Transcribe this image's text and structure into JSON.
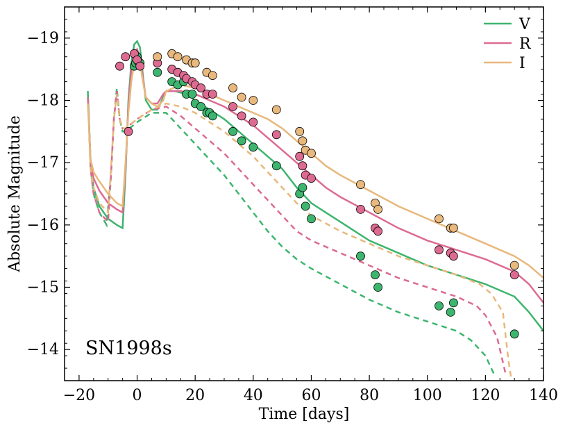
{
  "chart_data": {
    "type": "line",
    "title": "",
    "annotation": "SN1998s",
    "xlabel": "Time [days]",
    "ylabel": "Absolute Magnitude",
    "xlim": [
      -25,
      140
    ],
    "ylim": [
      -13.5,
      -19.5
    ],
    "xticks": [
      -20,
      0,
      20,
      40,
      60,
      80,
      100,
      120,
      140
    ],
    "xtick_labels": [
      "−20",
      "0",
      "20",
      "40",
      "60",
      "80",
      "100",
      "120",
      "140"
    ],
    "yticks": [
      -14,
      -15,
      -16,
      -17,
      -18,
      -19
    ],
    "ytick_labels": [
      "−14",
      "−15",
      "−16",
      "−17",
      "−18",
      "−19"
    ],
    "legend_position": "top-right",
    "series": [
      {
        "name": "V",
        "color": "#3db56e",
        "solid": [
          [
            -17,
            -18.15
          ],
          [
            -16,
            -17.0
          ],
          [
            -15,
            -16.6
          ],
          [
            -13,
            -16.3
          ],
          [
            -10,
            -16.1
          ],
          [
            -7,
            -16.0
          ],
          [
            -5,
            -15.95
          ],
          [
            -4,
            -16.8
          ],
          [
            -3,
            -18.0
          ],
          [
            -2,
            -18.6
          ],
          [
            -1,
            -18.9
          ],
          [
            0,
            -18.95
          ],
          [
            1,
            -18.85
          ],
          [
            2,
            -18.4
          ],
          [
            3,
            -18.0
          ],
          [
            5,
            -17.85
          ],
          [
            7,
            -17.85
          ],
          [
            9,
            -18.05
          ],
          [
            10,
            -18.15
          ],
          [
            13,
            -18.15
          ],
          [
            17,
            -18.1
          ],
          [
            20,
            -18.0
          ],
          [
            25,
            -17.85
          ],
          [
            30,
            -17.7
          ],
          [
            35,
            -17.5
          ],
          [
            40,
            -17.3
          ],
          [
            45,
            -17.1
          ],
          [
            50,
            -16.9
          ],
          [
            55,
            -16.6
          ],
          [
            60,
            -16.35
          ],
          [
            65,
            -16.2
          ],
          [
            70,
            -16.05
          ],
          [
            80,
            -15.75
          ],
          [
            90,
            -15.55
          ],
          [
            100,
            -15.35
          ],
          [
            110,
            -15.2
          ],
          [
            120,
            -15.05
          ],
          [
            125,
            -14.95
          ],
          [
            130,
            -14.85
          ],
          [
            135,
            -14.6
          ],
          [
            140,
            -14.3
          ]
        ],
        "dashed": [
          [
            -16.5,
            -17.6
          ],
          [
            -16,
            -16.9
          ],
          [
            -15,
            -16.5
          ],
          [
            -13,
            -16.2
          ],
          [
            -10.5,
            -16.0
          ],
          [
            -9,
            -16.8
          ],
          [
            -8,
            -17.7
          ],
          [
            -7,
            -18.2
          ],
          [
            -6,
            -17.7
          ],
          [
            -5,
            -17.5
          ],
          [
            -4,
            -17.5
          ],
          [
            0,
            -17.65
          ],
          [
            5,
            -17.8
          ],
          [
            10,
            -17.8
          ],
          [
            15,
            -17.55
          ],
          [
            20,
            -17.3
          ],
          [
            25,
            -17.05
          ],
          [
            30,
            -16.8
          ],
          [
            35,
            -16.5
          ],
          [
            40,
            -16.2
          ],
          [
            45,
            -15.9
          ],
          [
            50,
            -15.65
          ],
          [
            55,
            -15.45
          ],
          [
            60,
            -15.3
          ],
          [
            70,
            -15.05
          ],
          [
            80,
            -14.8
          ],
          [
            90,
            -14.6
          ],
          [
            100,
            -14.45
          ],
          [
            110,
            -14.3
          ],
          [
            115,
            -14.15
          ],
          [
            120,
            -13.9
          ],
          [
            123,
            -13.6
          ]
        ],
        "points": [
          [
            -1,
            -18.55
          ],
          [
            -0.5,
            -18.6
          ],
          [
            0,
            -18.7
          ],
          [
            0.5,
            -18.62
          ],
          [
            1,
            -18.6
          ],
          [
            7,
            -18.45
          ],
          [
            12,
            -18.3
          ],
          [
            14,
            -18.25
          ],
          [
            16,
            -18.3
          ],
          [
            17,
            -18.1
          ],
          [
            19,
            -18.1
          ],
          [
            20,
            -17.95
          ],
          [
            22,
            -17.9
          ],
          [
            24,
            -17.8
          ],
          [
            25,
            -17.8
          ],
          [
            26,
            -17.75
          ],
          [
            33,
            -17.5
          ],
          [
            36,
            -17.35
          ],
          [
            40,
            -17.25
          ],
          [
            48,
            -16.95
          ],
          [
            56,
            -16.5
          ],
          [
            57,
            -16.6
          ],
          [
            58,
            -16.3
          ],
          [
            60,
            -16.1
          ],
          [
            77,
            -15.5
          ],
          [
            82,
            -15.2
          ],
          [
            83,
            -15.0
          ],
          [
            104,
            -14.7
          ],
          [
            108,
            -14.6
          ],
          [
            109,
            -14.75
          ],
          [
            130,
            -14.25
          ]
        ]
      },
      {
        "name": "R",
        "color": "#dd6b91",
        "solid": [
          [
            -17,
            -18.05
          ],
          [
            -16,
            -17.0
          ],
          [
            -15,
            -16.75
          ],
          [
            -13,
            -16.55
          ],
          [
            -10,
            -16.35
          ],
          [
            -7,
            -16.25
          ],
          [
            -5,
            -16.2
          ],
          [
            -4,
            -16.9
          ],
          [
            -3,
            -17.9
          ],
          [
            -2,
            -18.5
          ],
          [
            -1,
            -18.75
          ],
          [
            0,
            -18.82
          ],
          [
            1,
            -18.7
          ],
          [
            2,
            -18.35
          ],
          [
            3,
            -18.05
          ],
          [
            5,
            -17.95
          ],
          [
            7,
            -17.95
          ],
          [
            9,
            -18.1
          ],
          [
            10,
            -18.15
          ],
          [
            15,
            -18.15
          ],
          [
            20,
            -18.1
          ],
          [
            25,
            -18.0
          ],
          [
            30,
            -17.9
          ],
          [
            35,
            -17.75
          ],
          [
            40,
            -17.6
          ],
          [
            45,
            -17.4
          ],
          [
            50,
            -17.2
          ],
          [
            55,
            -17.0
          ],
          [
            60,
            -16.8
          ],
          [
            65,
            -16.6
          ],
          [
            70,
            -16.45
          ],
          [
            80,
            -16.2
          ],
          [
            90,
            -15.95
          ],
          [
            100,
            -15.75
          ],
          [
            110,
            -15.6
          ],
          [
            120,
            -15.45
          ],
          [
            125,
            -15.35
          ],
          [
            130,
            -15.25
          ],
          [
            135,
            -15.05
          ],
          [
            140,
            -14.75
          ]
        ],
        "dashed": [
          [
            -16.5,
            -17.5
          ],
          [
            -16,
            -16.9
          ],
          [
            -15,
            -16.5
          ],
          [
            -13,
            -16.2
          ],
          [
            -10,
            -16.05
          ],
          [
            -9,
            -16.8
          ],
          [
            -8,
            -17.7
          ],
          [
            -7,
            -18.15
          ],
          [
            -6,
            -17.7
          ],
          [
            -5,
            -17.55
          ],
          [
            -4,
            -17.55
          ],
          [
            0,
            -17.7
          ],
          [
            5,
            -17.85
          ],
          [
            10,
            -17.9
          ],
          [
            15,
            -17.75
          ],
          [
            20,
            -17.55
          ],
          [
            25,
            -17.35
          ],
          [
            30,
            -17.15
          ],
          [
            35,
            -16.9
          ],
          [
            40,
            -16.65
          ],
          [
            45,
            -16.4
          ],
          [
            50,
            -16.15
          ],
          [
            55,
            -15.9
          ],
          [
            60,
            -15.75
          ],
          [
            70,
            -15.55
          ],
          [
            80,
            -15.35
          ],
          [
            90,
            -15.15
          ],
          [
            100,
            -15.0
          ],
          [
            110,
            -14.85
          ],
          [
            117,
            -14.7
          ],
          [
            120,
            -14.55
          ],
          [
            124,
            -14.2
          ],
          [
            127,
            -13.6
          ]
        ],
        "points": [
          [
            -6,
            -18.55
          ],
          [
            -4,
            -18.7
          ],
          [
            -3,
            -17.5
          ],
          [
            -1,
            -18.75
          ],
          [
            0,
            -18.65
          ],
          [
            1,
            -18.55
          ],
          [
            7,
            -18.6
          ],
          [
            12,
            -18.5
          ],
          [
            14,
            -18.45
          ],
          [
            16,
            -18.4
          ],
          [
            17,
            -18.35
          ],
          [
            19,
            -18.3
          ],
          [
            20,
            -18.25
          ],
          [
            22,
            -18.2
          ],
          [
            24,
            -18.1
          ],
          [
            26,
            -18.1
          ],
          [
            33,
            -17.9
          ],
          [
            36,
            -17.75
          ],
          [
            40,
            -17.65
          ],
          [
            48,
            -17.45
          ],
          [
            56,
            -17.1
          ],
          [
            57,
            -16.95
          ],
          [
            58,
            -16.8
          ],
          [
            60,
            -16.75
          ],
          [
            77,
            -16.25
          ],
          [
            82,
            -15.95
          ],
          [
            83,
            -15.9
          ],
          [
            104,
            -15.6
          ],
          [
            108,
            -15.55
          ],
          [
            109,
            -15.5
          ],
          [
            130,
            -15.2
          ]
        ]
      },
      {
        "name": "I",
        "color": "#e8b87c",
        "solid": [
          [
            -17,
            -17.95
          ],
          [
            -16,
            -17.05
          ],
          [
            -15,
            -16.85
          ],
          [
            -13,
            -16.7
          ],
          [
            -10,
            -16.5
          ],
          [
            -7,
            -16.35
          ],
          [
            -5,
            -16.3
          ],
          [
            -4,
            -17.0
          ],
          [
            -3,
            -17.8
          ],
          [
            -2,
            -18.3
          ],
          [
            -1,
            -18.6
          ],
          [
            0,
            -18.7
          ],
          [
            1,
            -18.6
          ],
          [
            2,
            -18.3
          ],
          [
            3,
            -18.05
          ],
          [
            5,
            -17.95
          ],
          [
            7,
            -17.9
          ],
          [
            9,
            -18.0
          ],
          [
            10,
            -18.15
          ],
          [
            15,
            -18.25
          ],
          [
            20,
            -18.2
          ],
          [
            25,
            -18.1
          ],
          [
            30,
            -18.0
          ],
          [
            35,
            -17.9
          ],
          [
            40,
            -17.8
          ],
          [
            45,
            -17.7
          ],
          [
            50,
            -17.55
          ],
          [
            55,
            -17.35
          ],
          [
            60,
            -17.15
          ],
          [
            65,
            -16.95
          ],
          [
            70,
            -16.8
          ],
          [
            80,
            -16.55
          ],
          [
            90,
            -16.3
          ],
          [
            100,
            -16.1
          ],
          [
            110,
            -15.9
          ],
          [
            120,
            -15.7
          ],
          [
            125,
            -15.6
          ],
          [
            130,
            -15.5
          ],
          [
            135,
            -15.35
          ],
          [
            140,
            -15.15
          ]
        ],
        "dashed": [
          [
            -16.5,
            -17.4
          ],
          [
            -16,
            -16.9
          ],
          [
            -15,
            -16.6
          ],
          [
            -13,
            -16.35
          ],
          [
            -10,
            -16.2
          ],
          [
            -9,
            -16.9
          ],
          [
            -8,
            -17.7
          ],
          [
            -7,
            -18.1
          ],
          [
            -6,
            -17.7
          ],
          [
            -5,
            -17.55
          ],
          [
            -4,
            -17.55
          ],
          [
            0,
            -17.7
          ],
          [
            5,
            -17.85
          ],
          [
            10,
            -17.95
          ],
          [
            15,
            -17.9
          ],
          [
            20,
            -17.8
          ],
          [
            25,
            -17.65
          ],
          [
            30,
            -17.5
          ],
          [
            35,
            -17.3
          ],
          [
            40,
            -17.1
          ],
          [
            45,
            -16.85
          ],
          [
            50,
            -16.6
          ],
          [
            55,
            -16.35
          ],
          [
            60,
            -16.15
          ],
          [
            70,
            -15.9
          ],
          [
            80,
            -15.7
          ],
          [
            90,
            -15.5
          ],
          [
            100,
            -15.35
          ],
          [
            110,
            -15.2
          ],
          [
            118,
            -15.05
          ],
          [
            122,
            -14.9
          ],
          [
            126,
            -14.6
          ],
          [
            128,
            -13.8
          ],
          [
            129,
            -13.5
          ]
        ],
        "points": [
          [
            7,
            -18.7
          ],
          [
            12,
            -18.75
          ],
          [
            14,
            -18.7
          ],
          [
            17,
            -18.65
          ],
          [
            19,
            -18.6
          ],
          [
            20,
            -18.6
          ],
          [
            24,
            -18.45
          ],
          [
            26,
            -18.4
          ],
          [
            33,
            -18.2
          ],
          [
            36,
            -18.05
          ],
          [
            40,
            -18.0
          ],
          [
            48,
            -17.85
          ],
          [
            56,
            -17.5
          ],
          [
            57,
            -17.35
          ],
          [
            58,
            -17.2
          ],
          [
            60,
            -17.15
          ],
          [
            77,
            -16.65
          ],
          [
            82,
            -16.35
          ],
          [
            83,
            -16.25
          ],
          [
            104,
            -16.1
          ],
          [
            108,
            -15.95
          ],
          [
            109,
            -15.95
          ],
          [
            130,
            -15.35
          ]
        ]
      }
    ]
  }
}
